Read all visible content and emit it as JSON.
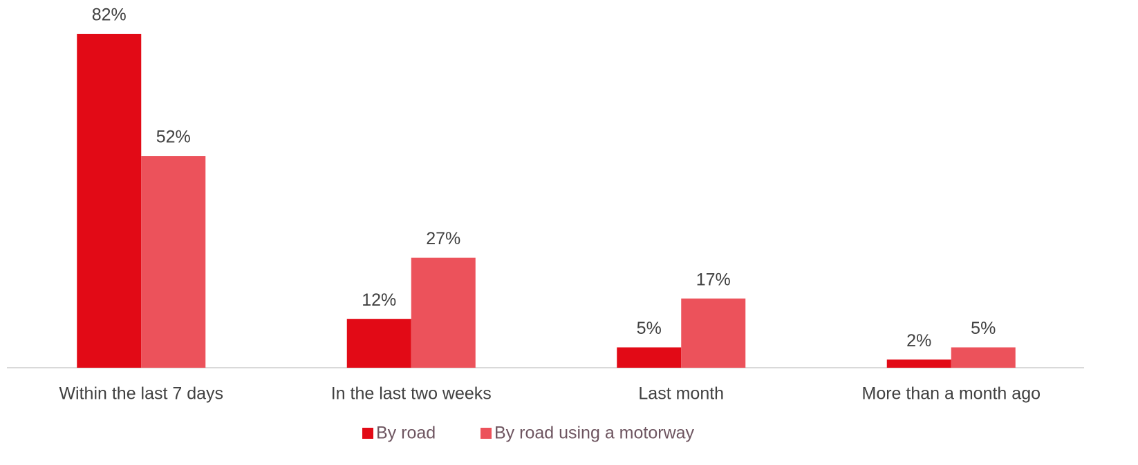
{
  "chart_data": {
    "type": "bar",
    "categories": [
      "Within the last 7 days",
      "In the last two weeks",
      "Last month",
      "More than a month ago"
    ],
    "series": [
      {
        "name": "By road",
        "color": "#e20a16",
        "values": [
          82,
          12,
          5,
          2
        ],
        "value_labels": [
          "82%",
          "12%",
          "5%",
          "2%"
        ]
      },
      {
        "name": "By road using a motorway",
        "color": "#ec525b",
        "values": [
          52,
          27,
          17,
          5
        ],
        "value_labels": [
          "52%",
          "27%",
          "17%",
          "5%"
        ]
      }
    ],
    "legend": "bottom"
  }
}
